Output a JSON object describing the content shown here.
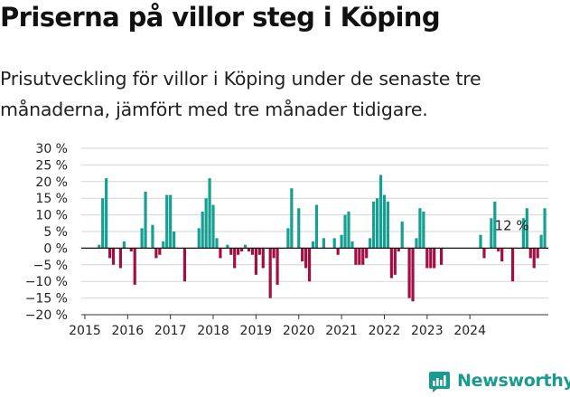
{
  "header": {
    "title": "Priserna på villor steg i Köping",
    "subtitle": "Prisutveckling för villor i Köping under de senaste tre månaderna, jämfört med tre månader tidigare."
  },
  "brand": {
    "name": "Newsworthy"
  },
  "colors": {
    "positive": "#16a093",
    "negative": "#a10f45",
    "zero_line": "#111111",
    "grid": "#d6d6d6"
  },
  "chart_data": {
    "type": "bar",
    "title": "Priserna på villor steg i Köping",
    "ylim": [
      -20,
      30
    ],
    "yticks": [
      30,
      25,
      20,
      15,
      10,
      5,
      0,
      -5,
      -10,
      -15,
      -20
    ],
    "ytick_labels": [
      "30 %",
      "25 %",
      "20 %",
      "15 %",
      "10 %",
      "5 %",
      "0 %",
      "−5 %",
      "−10 %",
      "−15 %",
      "−20 %"
    ],
    "xticks": [
      "2015",
      "2016",
      "2017",
      "2018",
      "2019",
      "2020",
      "2021",
      "2022",
      "2023",
      "2024"
    ],
    "start": "2015-01",
    "unit": "%",
    "annotation": {
      "label": "12 %",
      "month": "2024-12"
    },
    "values": [
      null,
      null,
      null,
      null,
      1,
      15,
      21,
      -3,
      -5,
      null,
      -6,
      2,
      null,
      -1,
      -11,
      null,
      6,
      17,
      null,
      7,
      -3,
      -2,
      2,
      16,
      16,
      5,
      null,
      null,
      -10,
      null,
      null,
      null,
      6,
      11,
      15,
      21,
      13,
      3,
      -3,
      null,
      1,
      -2,
      -6,
      -2,
      -1,
      1,
      -1,
      -2,
      -8,
      -2,
      -6,
      null,
      -15,
      -3,
      -11,
      null,
      null,
      6,
      18,
      null,
      12,
      -4,
      -6,
      -10,
      2,
      13,
      null,
      3,
      null,
      null,
      3,
      -2,
      4,
      10,
      11,
      2,
      -5,
      -5,
      -5,
      -3,
      3,
      14,
      15,
      22,
      16,
      14,
      -9,
      -8,
      -1,
      8,
      null,
      -15,
      -16,
      3,
      12,
      11,
      -6,
      -6,
      -6,
      null,
      -5,
      null,
      null,
      null,
      null,
      null,
      null,
      null,
      null,
      null,
      null,
      4,
      -3,
      null,
      9,
      14,
      -1,
      -4,
      null,
      null,
      -10,
      null,
      null,
      9,
      12,
      -3,
      -6,
      -3,
      4,
      12
    ]
  }
}
